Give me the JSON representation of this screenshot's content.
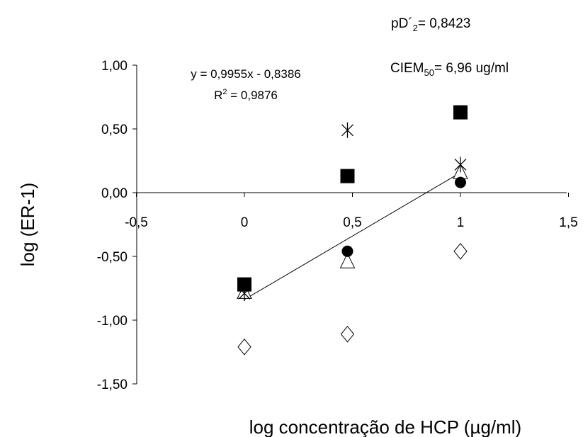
{
  "chart_data": {
    "type": "scatter",
    "title": "",
    "xlabel": "log concentração de HCP (µg/ml)",
    "ylabel": "log (ER-1)",
    "xlim": [
      -0.5,
      1.5
    ],
    "ylim": [
      -1.5,
      1.0
    ],
    "x_ticks": [
      "-0,5",
      "0",
      "0,5",
      "1",
      "1,5"
    ],
    "y_ticks": [
      "1,00",
      "0,50",
      "0,00",
      "-0,50",
      "-1,00",
      "-1,50"
    ],
    "grid": false,
    "legend": "none",
    "series": [
      {
        "marker": "filled-square",
        "points": [
          [
            0,
            -0.72
          ],
          [
            0.477,
            0.13
          ],
          [
            1,
            0.63
          ]
        ]
      },
      {
        "marker": "asterisk",
        "points": [
          [
            0,
            -0.79
          ],
          [
            0.477,
            0.49
          ],
          [
            1,
            0.22
          ]
        ]
      },
      {
        "marker": "filled-circle",
        "points": [
          [
            0.477,
            -0.46
          ],
          [
            1,
            0.08
          ]
        ]
      },
      {
        "marker": "open-triangle",
        "points": [
          [
            0,
            -0.78
          ],
          [
            0.477,
            -0.54
          ],
          [
            1,
            0.16
          ]
        ]
      },
      {
        "marker": "open-diamond",
        "points": [
          [
            0,
            -1.21
          ],
          [
            0.477,
            -1.11
          ],
          [
            1,
            -0.46
          ]
        ]
      }
    ],
    "trendline": {
      "slope": 0.9955,
      "intercept": -0.8386,
      "x_range": [
        0,
        1
      ]
    },
    "annotations": {
      "equation": "y = 0,9955x - 0,8386",
      "r2_label": "R",
      "r2_sup": "2",
      "r2_value": " = 0,9876",
      "pd2_label": "pD´",
      "pd2_sub": "2",
      "pd2_value": "= 0,8423",
      "ciem_label": "CIEM",
      "ciem_sub": "50",
      "ciem_value": "= 6,96 ug/ml"
    },
    "colors": {
      "markers": "#000000",
      "line": "#000000"
    }
  }
}
